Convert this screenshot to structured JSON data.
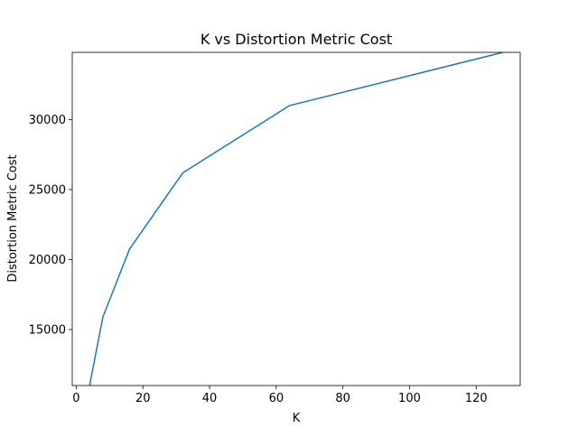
{
  "chart_data": {
    "type": "line",
    "title": "K vs Distortion Metric Cost",
    "xlabel": "K",
    "ylabel": "Distortion Metric Cost",
    "xlim": [
      -1.2,
      133.2
    ],
    "ylim": [
      11000,
      34800
    ],
    "xticks": [
      0,
      20,
      40,
      60,
      80,
      100,
      120
    ],
    "yticks": [
      15000,
      20000,
      25000,
      30000
    ],
    "grid": false,
    "legend": "none",
    "series": [
      {
        "color": "#1f77b4",
        "x": [
          4,
          8,
          16,
          32,
          64,
          128
        ],
        "y": [
          11000,
          15900,
          20750,
          26200,
          31000,
          34800
        ]
      }
    ]
  }
}
